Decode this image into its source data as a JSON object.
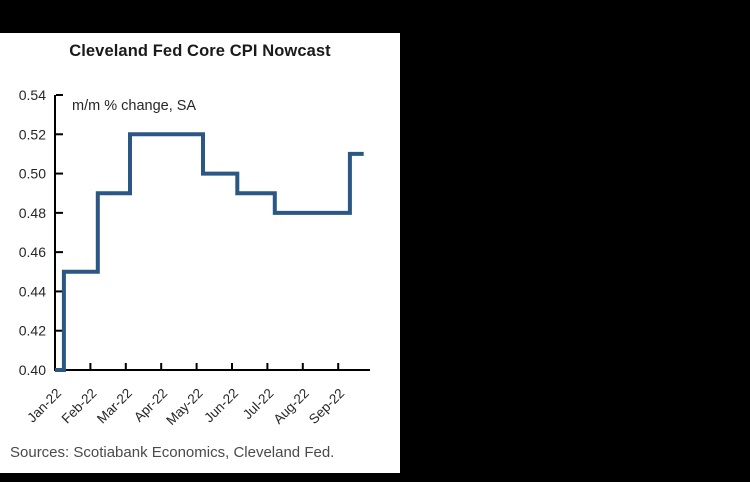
{
  "window": {
    "background_color": "#000000",
    "panel_background_color": "#ffffff"
  },
  "chart_data": {
    "type": "line",
    "line_style": "step",
    "title": "Cleveland Fed Core CPI Nowcast",
    "annotation": "m/m % change, SA",
    "source_note": "Sources: Scotiabank Economics, Cleveland Fed.",
    "grid": false,
    "legend_position": "none",
    "ylim": [
      0.4,
      0.54
    ],
    "y_ticks": [
      0.54,
      0.52,
      0.5,
      0.48,
      0.46,
      0.44,
      0.42,
      0.4
    ],
    "x_tick_labels": [
      "Jan-22",
      "Feb-22",
      "Mar-22",
      "Apr-22",
      "May-22",
      "Jun-22",
      "Jul-22",
      "Aug-22",
      "Sep-22"
    ],
    "x_unit": "months-since-Jan-22",
    "series": [
      {
        "name": "Cleveland Fed core CPI nowcast (m/m % change, SA)",
        "color": "#2A5784",
        "line_width": 4,
        "points": [
          [
            0.0,
            0.4
          ],
          [
            0.25,
            0.4
          ],
          [
            0.25,
            0.45
          ],
          [
            1.21,
            0.45
          ],
          [
            1.21,
            0.49
          ],
          [
            2.12,
            0.49
          ],
          [
            2.12,
            0.52
          ],
          [
            4.18,
            0.52
          ],
          [
            4.18,
            0.5
          ],
          [
            5.15,
            0.5
          ],
          [
            5.15,
            0.49
          ],
          [
            6.21,
            0.49
          ],
          [
            6.21,
            0.48
          ],
          [
            8.33,
            0.48
          ],
          [
            8.33,
            0.51
          ],
          [
            8.72,
            0.51
          ]
        ]
      }
    ],
    "axis_color": "#000000",
    "tick_label_color": "#262626"
  }
}
